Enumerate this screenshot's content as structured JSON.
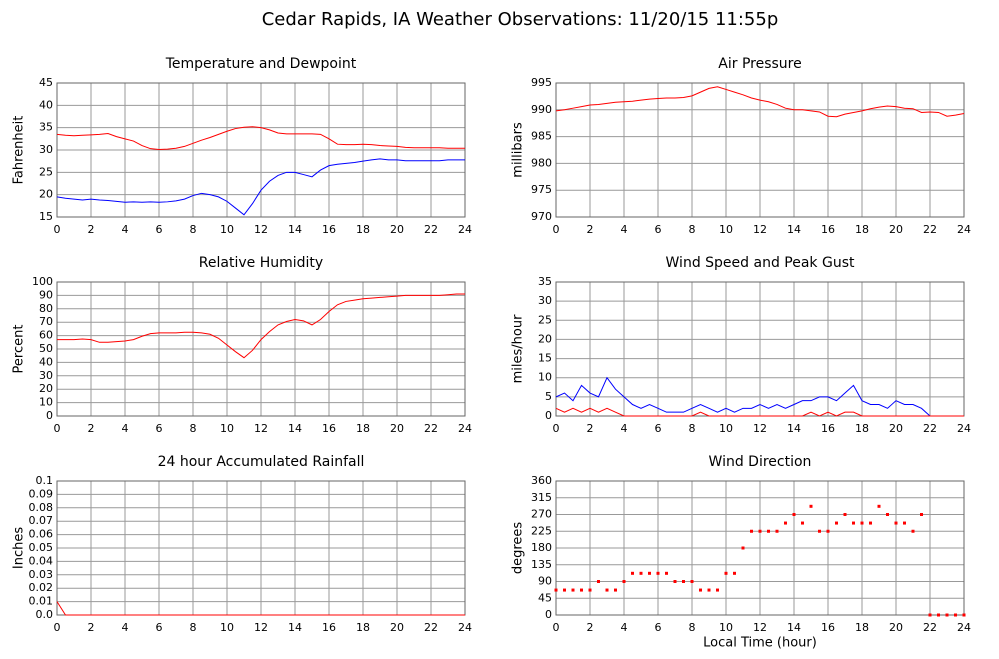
{
  "title": "Cedar Rapids, IA Weather Observations: 11/20/15 11:55p",
  "chart_data": [
    {
      "type": "line",
      "title": "Temperature and Dewpoint",
      "ylabel": "Fahrenheit",
      "xlim": [
        0,
        24
      ],
      "xticks": [
        0,
        2,
        4,
        6,
        8,
        10,
        12,
        14,
        16,
        18,
        20,
        22,
        24
      ],
      "ylim": [
        15,
        45
      ],
      "yticks": [
        15,
        20,
        25,
        30,
        35,
        40,
        45
      ],
      "grid": true,
      "x": [
        0,
        0.5,
        1,
        1.5,
        2,
        2.5,
        3,
        3.5,
        4,
        4.5,
        5,
        5.5,
        6,
        6.5,
        7,
        7.5,
        8,
        8.5,
        9,
        9.5,
        10,
        10.5,
        11,
        11.5,
        12,
        12.5,
        13,
        13.5,
        14,
        14.5,
        15,
        15.5,
        16,
        16.5,
        17,
        17.5,
        18,
        18.5,
        19,
        19.5,
        20,
        20.5,
        21,
        21.5,
        22,
        22.5,
        23,
        23.5,
        24
      ],
      "series": [
        {
          "color": "#ff0000",
          "values": [
            33.5,
            33.3,
            33.2,
            33.3,
            33.4,
            33.5,
            33.7,
            33,
            32.5,
            32,
            31,
            30.3,
            30.1,
            30.2,
            30.4,
            30.8,
            31.5,
            32.2,
            32.8,
            33.5,
            34.2,
            34.8,
            35.1,
            35.2,
            35,
            34.5,
            33.8,
            33.6,
            33.6,
            33.6,
            33.6,
            33.5,
            32.5,
            31.3,
            31.2,
            31.2,
            31.3,
            31.2,
            31,
            30.9,
            30.8,
            30.6,
            30.5,
            30.5,
            30.5,
            30.5,
            30.4,
            30.4,
            30.4
          ]
        },
        {
          "color": "#0000ff",
          "values": [
            19.5,
            19.2,
            19,
            18.8,
            19,
            18.8,
            18.7,
            18.5,
            18.3,
            18.4,
            18.3,
            18.4,
            18.3,
            18.4,
            18.6,
            19,
            19.8,
            20.3,
            20,
            19.5,
            18.5,
            17,
            15.5,
            18,
            21,
            23,
            24.3,
            25,
            25,
            24.5,
            24,
            25.5,
            26.5,
            26.8,
            27,
            27.2,
            27.5,
            27.8,
            28,
            27.8,
            27.8,
            27.6,
            27.6,
            27.6,
            27.6,
            27.6,
            27.8,
            27.8,
            27.8
          ]
        }
      ]
    },
    {
      "type": "line",
      "title": "Air Pressure",
      "ylabel": "millibars",
      "xlim": [
        0,
        24
      ],
      "xticks": [
        0,
        2,
        4,
        6,
        8,
        10,
        12,
        14,
        16,
        18,
        20,
        22,
        24
      ],
      "ylim": [
        970,
        995
      ],
      "yticks": [
        970,
        975,
        980,
        985,
        990,
        995
      ],
      "grid": true,
      "x": [
        0,
        0.5,
        1,
        1.5,
        2,
        2.5,
        3,
        3.5,
        4,
        4.5,
        5,
        5.5,
        6,
        6.5,
        7,
        7.5,
        8,
        8.5,
        9,
        9.5,
        10,
        10.5,
        11,
        11.5,
        12,
        12.5,
        13,
        13.5,
        14,
        14.5,
        15,
        15.5,
        16,
        16.5,
        17,
        17.5,
        18,
        18.5,
        19,
        19.5,
        20,
        20.5,
        21,
        21.5,
        22,
        22.5,
        23,
        23.5,
        24
      ],
      "series": [
        {
          "color": "#ff0000",
          "values": [
            989.8,
            990,
            990.3,
            990.6,
            990.9,
            991,
            991.2,
            991.4,
            991.5,
            991.6,
            991.8,
            992,
            992.1,
            992.2,
            992.2,
            992.3,
            992.6,
            993.3,
            994,
            994.3,
            993.8,
            993.3,
            992.8,
            992.2,
            991.8,
            991.5,
            991,
            990.3,
            990,
            990,
            989.8,
            989.6,
            988.8,
            988.7,
            989.2,
            989.5,
            989.8,
            990.2,
            990.5,
            990.7,
            990.6,
            990.3,
            990.2,
            989.5,
            989.6,
            989.5,
            988.8,
            989,
            989.3
          ]
        }
      ]
    },
    {
      "type": "line",
      "title": "Relative Humidity",
      "ylabel": "Percent",
      "xlim": [
        0,
        24
      ],
      "xticks": [
        0,
        2,
        4,
        6,
        8,
        10,
        12,
        14,
        16,
        18,
        20,
        22,
        24
      ],
      "ylim": [
        0,
        100
      ],
      "yticks": [
        0,
        10,
        20,
        30,
        40,
        50,
        60,
        70,
        80,
        90,
        100
      ],
      "grid": true,
      "x": [
        0,
        0.5,
        1,
        1.5,
        2,
        2.5,
        3,
        3.5,
        4,
        4.5,
        5,
        5.5,
        6,
        6.5,
        7,
        7.5,
        8,
        8.5,
        9,
        9.5,
        10,
        10.5,
        11,
        11.5,
        12,
        12.5,
        13,
        13.5,
        14,
        14.5,
        15,
        15.5,
        16,
        16.5,
        17,
        17.5,
        18,
        18.5,
        19,
        19.5,
        20,
        20.5,
        21,
        21.5,
        22,
        22.5,
        23,
        23.5,
        24
      ],
      "series": [
        {
          "color": "#ff0000",
          "values": [
            57,
            57,
            57,
            57.5,
            57,
            55,
            55,
            55.5,
            56,
            57,
            59.5,
            61.5,
            62,
            62,
            62,
            62.5,
            62.5,
            62,
            61,
            58,
            53,
            48,
            43.5,
            49,
            57,
            63,
            68,
            70.5,
            72,
            71,
            68,
            72,
            78,
            83,
            85.5,
            86.5,
            87.5,
            88,
            88.5,
            89,
            89.5,
            90,
            90,
            90,
            90,
            90,
            90.5,
            91,
            91
          ]
        }
      ]
    },
    {
      "type": "line",
      "title": "Wind Speed and Peak Gust",
      "ylabel": "miles/hour",
      "xlim": [
        0,
        24
      ],
      "xticks": [
        0,
        2,
        4,
        6,
        8,
        10,
        12,
        14,
        16,
        18,
        20,
        22,
        24
      ],
      "ylim": [
        0,
        35
      ],
      "yticks": [
        0,
        5,
        10,
        15,
        20,
        25,
        30,
        35
      ],
      "grid": true,
      "x": [
        0,
        0.5,
        1,
        1.5,
        2,
        2.5,
        3,
        3.5,
        4,
        4.5,
        5,
        5.5,
        6,
        6.5,
        7,
        7.5,
        8,
        8.5,
        9,
        9.5,
        10,
        10.5,
        11,
        11.5,
        12,
        12.5,
        13,
        13.5,
        14,
        14.5,
        15,
        15.5,
        16,
        16.5,
        17,
        17.5,
        18,
        18.5,
        19,
        19.5,
        20,
        20.5,
        21,
        21.5,
        22,
        22.5,
        23,
        23.5,
        24
      ],
      "series": [
        {
          "color": "#0000ff",
          "values": [
            5,
            6,
            4,
            8,
            6,
            5,
            10,
            7,
            5,
            3,
            2,
            3,
            2,
            1,
            1,
            1,
            2,
            3,
            2,
            1,
            2,
            1,
            2,
            2,
            3,
            2,
            3,
            2,
            3,
            4,
            4,
            5,
            5,
            4,
            6,
            8,
            4,
            3,
            3,
            2,
            4,
            3,
            3,
            2,
            0,
            0,
            0,
            0,
            0
          ]
        },
        {
          "color": "#ff0000",
          "values": [
            2,
            1,
            2,
            1,
            2,
            1,
            2,
            1,
            0,
            0,
            0,
            0,
            0,
            0,
            0,
            0,
            0,
            1,
            0,
            0,
            0,
            0,
            0,
            0,
            0,
            0,
            0,
            0,
            0,
            0,
            1,
            0,
            1,
            0,
            1,
            1,
            0,
            0,
            0,
            0,
            0,
            0,
            0,
            0,
            0,
            0,
            0,
            0,
            0
          ]
        }
      ]
    },
    {
      "type": "line",
      "title": "24 hour Accumulated Rainfall",
      "ylabel": "Inches",
      "xlim": [
        0,
        24
      ],
      "xticks": [
        0,
        2,
        4,
        6,
        8,
        10,
        12,
        14,
        16,
        18,
        20,
        22,
        24
      ],
      "ylim": [
        0,
        0.1
      ],
      "yticks": [
        {
          "value": 0,
          "label": "0.0"
        },
        0.01,
        0.02,
        0.03,
        0.04,
        0.05,
        0.06,
        0.07,
        0.08,
        0.09,
        0.1
      ],
      "grid": true,
      "x": [
        0,
        0.5,
        1,
        1.5,
        2,
        2.5,
        3,
        3.5,
        4,
        4.5,
        5,
        5.5,
        6,
        6.5,
        7,
        7.5,
        8,
        8.5,
        9,
        9.5,
        10,
        10.5,
        11,
        11.5,
        12,
        12.5,
        13,
        13.5,
        14,
        14.5,
        15,
        15.5,
        16,
        16.5,
        17,
        17.5,
        18,
        18.5,
        19,
        19.5,
        20,
        20.5,
        21,
        21.5,
        22,
        22.5,
        23,
        23.5,
        24
      ],
      "series": [
        {
          "color": "#ff0000",
          "values": [
            0.01,
            0,
            0,
            0,
            0,
            0,
            0,
            0,
            0,
            0,
            0,
            0,
            0,
            0,
            0,
            0,
            0,
            0,
            0,
            0,
            0,
            0,
            0,
            0,
            0,
            0,
            0,
            0,
            0,
            0,
            0,
            0,
            0,
            0,
            0,
            0,
            0,
            0,
            0,
            0,
            0,
            0,
            0,
            0,
            0,
            0,
            0,
            0,
            0
          ]
        }
      ]
    },
    {
      "type": "scatter",
      "title": "Wind Direction",
      "ylabel": "degrees",
      "xlabel": "Local Time (hour)",
      "xlim": [
        0,
        24
      ],
      "xticks": [
        0,
        2,
        4,
        6,
        8,
        10,
        12,
        14,
        16,
        18,
        20,
        22,
        24
      ],
      "ylim": [
        0,
        360
      ],
      "yticks": [
        0,
        45,
        90,
        135,
        180,
        225,
        270,
        315,
        360
      ],
      "grid": true,
      "x": [
        0,
        0.5,
        1,
        1.5,
        2,
        2.5,
        3,
        3.5,
        4,
        4.5,
        5,
        5.5,
        6,
        6.5,
        7,
        7.5,
        8,
        8.5,
        9,
        9.5,
        10,
        10.5,
        11,
        11.5,
        12,
        12.5,
        13,
        13.5,
        14,
        14.5,
        15,
        15.5,
        16,
        16.5,
        17,
        17.5,
        18,
        18.5,
        19,
        19.5,
        20,
        20.5,
        21,
        21.5,
        22,
        22.5,
        23,
        23.5,
        24
      ],
      "series": [
        {
          "color": "#ff0000",
          "values": [
            67,
            67,
            67,
            67,
            67,
            90,
            67,
            67,
            90,
            112,
            112,
            112,
            112,
            112,
            90,
            90,
            90,
            67,
            67,
            67,
            112,
            112,
            180,
            225,
            225,
            225,
            225,
            247,
            270,
            247,
            292,
            225,
            225,
            247,
            270,
            247,
            247,
            247,
            292,
            270,
            247,
            247,
            225,
            270,
            0,
            0,
            0,
            0,
            0
          ]
        }
      ]
    }
  ]
}
